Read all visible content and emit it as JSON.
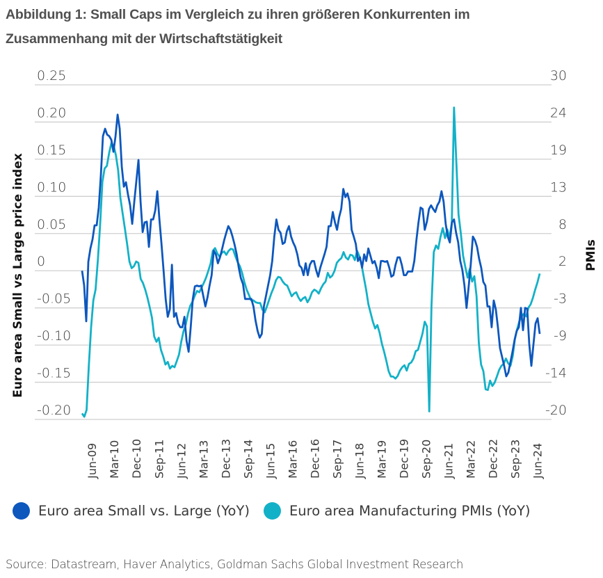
{
  "figure": {
    "title_line1": "Abbildung 1: Small Caps im Vergleich zu ihren größeren Konkurrenten im",
    "title_line2": "Zusammenhang mit der Wirtschaftstätigkeit",
    "source": "Source: Datastream, Haver Analytics, Goldman Sachs Global Investment Research"
  },
  "colors": {
    "small_vs_large": "#0d57bd",
    "pmi": "#13b1c7",
    "grid": "#cfcfcf"
  },
  "chart_data": {
    "type": "line",
    "title": "Abbildung 1: Small Caps im Vergleich zu ihren größeren Konkurrenten im Zusammenhang mit der Wirtschaftstätigkeit",
    "ylabel": "Euro area Small vs Large price index",
    "y2label": "PMIs",
    "ylim": [
      -0.2,
      0.25
    ],
    "y2lim": [
      -20,
      30
    ],
    "yticks": [
      "0.25",
      "0.20",
      "0.15",
      "0.10",
      "0.05",
      "0",
      "-0.05",
      "-0.10",
      "-0.15",
      "-0.20"
    ],
    "y2ticks": [
      "30",
      "24",
      "19",
      "13",
      "8",
      "2",
      "-3",
      "-9",
      "-14",
      "-20"
    ],
    "xticks": [
      "Jun-09",
      "Mar-10",
      "Dec-10",
      "Sep-11",
      "Jun-12",
      "Mar-13",
      "Dec-13",
      "Sep-14",
      "Jun-15",
      "Mar-16",
      "Dec-16",
      "Sep-17",
      "Jun-18",
      "Mar-19",
      "Dec-19",
      "Sep-20",
      "Jun-21",
      "Mar-22",
      "Dec-22",
      "Sep-23",
      "Jun-24"
    ],
    "x_start": "Feb-09",
    "x_end": "Jul-24",
    "grid": true,
    "legend_position": "bottom",
    "series": [
      {
        "name": "Euro area Small vs. Large (YoY)",
        "axis": "left",
        "values": [
          0.0,
          -0.02,
          -0.068,
          0.012,
          0.03,
          0.042,
          0.061,
          0.061,
          0.085,
          0.128,
          0.181,
          0.191,
          0.183,
          0.181,
          0.176,
          0.16,
          0.181,
          0.21,
          0.191,
          0.14,
          0.113,
          0.119,
          0.102,
          0.088,
          0.063,
          0.093,
          0.121,
          0.149,
          0.093,
          0.052,
          0.065,
          0.066,
          0.032,
          0.069,
          0.069,
          0.081,
          0.107,
          0.069,
          0.036,
          0.0,
          -0.038,
          -0.062,
          -0.052,
          0.008,
          -0.062,
          -0.057,
          -0.071,
          -0.076,
          -0.076,
          -0.062,
          -0.094,
          -0.109,
          -0.076,
          -0.038,
          -0.021,
          -0.02,
          -0.021,
          -0.02,
          -0.034,
          -0.048,
          -0.036,
          -0.02,
          -0.006,
          0.027,
          0.022,
          0.01,
          0.018,
          0.029,
          0.041,
          0.051,
          0.06,
          0.055,
          0.046,
          0.035,
          0.022,
          0.004,
          -0.01,
          -0.018,
          -0.038,
          -0.038,
          -0.038,
          -0.038,
          -0.048,
          -0.067,
          -0.081,
          -0.09,
          -0.085,
          -0.048,
          -0.034,
          -0.02,
          -0.006,
          0.013,
          0.046,
          0.069,
          0.055,
          0.051,
          0.036,
          0.038,
          0.053,
          0.06,
          0.046,
          0.038,
          0.032,
          0.022,
          0.007,
          0.004,
          -0.006,
          0.01,
          -0.006,
          0.008,
          0.013,
          0.013,
          0.001,
          -0.008,
          0.004,
          0.013,
          0.022,
          0.032,
          0.06,
          0.06,
          0.079,
          0.065,
          0.055,
          0.072,
          0.083,
          0.11,
          0.099,
          0.104,
          0.093,
          0.055,
          0.046,
          0.036,
          0.013,
          0.018,
          0.004,
          0.022,
          0.013,
          0.03,
          0.02,
          0.01,
          0.013,
          0.004,
          -0.01,
          0.013,
          0.013,
          0.012,
          0.013,
          0.004,
          -0.008,
          -0.006,
          0.008,
          0.018,
          0.018,
          0.008,
          -0.006,
          -0.006,
          -0.001,
          -0.001,
          -0.001,
          0.013,
          0.041,
          0.065,
          0.085,
          0.083,
          0.055,
          0.066,
          0.083,
          0.088,
          0.083,
          0.079,
          0.088,
          0.093,
          0.107,
          0.093,
          0.063,
          0.046,
          0.038,
          0.065,
          0.069,
          0.051,
          0.038,
          0.013,
          0.001,
          -0.02,
          -0.05,
          -0.022,
          0.008,
          0.046,
          0.041,
          0.032,
          0.016,
          0.004,
          -0.015,
          -0.02,
          -0.048,
          -0.048,
          -0.076,
          -0.04,
          -0.052,
          -0.076,
          -0.104,
          -0.116,
          -0.128,
          -0.142,
          -0.137,
          -0.123,
          -0.109,
          -0.093,
          -0.081,
          -0.076,
          -0.05,
          -0.08,
          -0.05,
          -0.051,
          -0.099,
          -0.128,
          -0.099,
          -0.071,
          -0.064,
          -0.085
        ]
      },
      {
        "name": "Euro area Manufacturing PMIs (YoY)",
        "axis": "right",
        "values": [
          -19.1,
          -19.6,
          -18.6,
          -12.0,
          -6.2,
          -2.2,
          -0.6,
          3.8,
          9.0,
          15.5,
          17.5,
          17.9,
          19.8,
          21.3,
          20.9,
          19.5,
          17.2,
          13.1,
          10.8,
          8.5,
          6.2,
          3.6,
          2.6,
          2.9,
          3.6,
          3.4,
          1.0,
          0.4,
          -0.6,
          -1.8,
          -3.2,
          -4.8,
          -7.6,
          -8.4,
          -7.8,
          -9.6,
          -10.6,
          -11.8,
          -11.4,
          -12.4,
          -12.0,
          -12.2,
          -11.3,
          -10.3,
          -8.4,
          -6.8,
          -5.8,
          -4.2,
          -3.0,
          -2.4,
          -1.5,
          -0.8,
          -1.0,
          -0.3,
          0.4,
          1.2,
          2.2,
          3.3,
          5.2,
          5.6,
          4.8,
          4.3,
          4.9,
          5.1,
          4.6,
          5.2,
          5.5,
          5.4,
          4.4,
          3.5,
          2.9,
          1.9,
          0.5,
          -0.6,
          -1.4,
          -2.2,
          -2.2,
          -2.5,
          -2.6,
          -2.6,
          -3.6,
          -4.0,
          -3.1,
          -2.1,
          -1.1,
          -0.3,
          0.8,
          1.3,
          1.2,
          0.6,
          0.2,
          0.0,
          -0.8,
          -1.6,
          -1.2,
          -1.0,
          -1.8,
          -2.3,
          -1.9,
          -1.7,
          -2.5,
          -1.9,
          -1.0,
          -0.6,
          -0.8,
          -1.2,
          -0.4,
          0.2,
          0.6,
          1.9,
          1.2,
          1.5,
          2.2,
          3.4,
          3.8,
          4.1,
          5.0,
          4.2,
          3.9,
          4.6,
          4.5,
          3.8,
          5.2,
          4.4,
          3.1,
          1.2,
          -0.6,
          -2.8,
          -4.1,
          -5.4,
          -6.4,
          -5.9,
          -7.1,
          -8.7,
          -9.9,
          -11.3,
          -12.8,
          -13.6,
          -13.6,
          -13.9,
          -13.5,
          -12.7,
          -12.2,
          -11.9,
          -12.7,
          -11.7,
          -11.5,
          -10.9,
          -9.8,
          -9.6,
          -8.4,
          -7.2,
          -5.4,
          -6.1,
          -18.8,
          -3.0,
          5.0,
          6.0,
          5.5,
          7.3,
          8.6,
          7.1,
          8.4,
          7.1,
          9.4,
          26.6,
          18.5,
          10.6,
          7.8,
          4.5,
          2.8,
          1.2,
          2.5,
          0.6,
          1.4,
          -1.6,
          -8.6,
          -11.8,
          -12.8,
          -15.5,
          -15.6,
          -14.2,
          -15.0,
          -14.5,
          -13.6,
          -12.6,
          -12.0,
          -11.7,
          -10.9,
          -11.6,
          -12.0,
          -10.6,
          -8.0,
          -6.5,
          -5.3,
          -4.6,
          -4.2,
          -4.6,
          -3.3,
          -2.8,
          -1.8,
          -0.6,
          0.5,
          1.8
        ]
      }
    ]
  },
  "legend": {
    "items": [
      {
        "label": "Euro area Small vs. Large (YoY)"
      },
      {
        "label": "Euro area Manufacturing PMIs (YoY)"
      }
    ]
  },
  "axes": {
    "left_title": "Euro area Small vs Large price index",
    "right_title": "PMIs"
  }
}
